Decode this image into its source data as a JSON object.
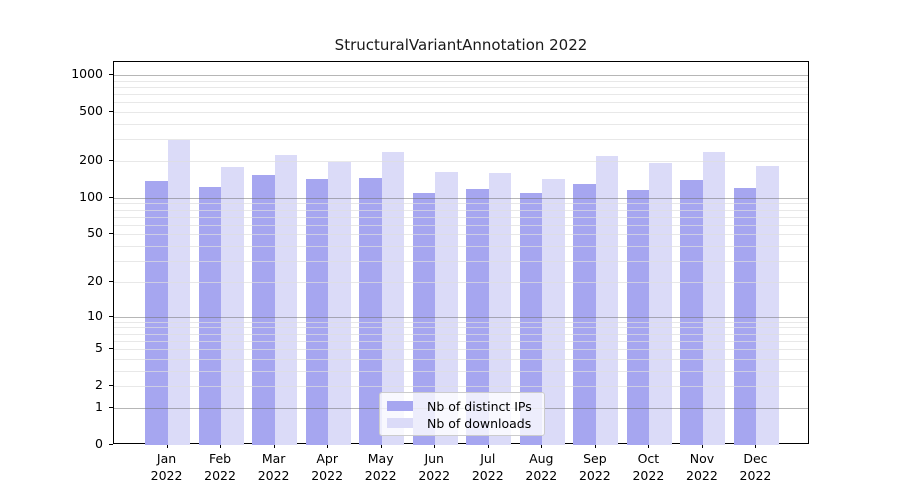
{
  "chart_data": {
    "type": "bar",
    "title": "StructuralVariantAnnotation 2022",
    "year": "2022",
    "categories": [
      "Jan",
      "Feb",
      "Mar",
      "Apr",
      "May",
      "Jun",
      "Jul",
      "Aug",
      "Sep",
      "Oct",
      "Nov",
      "Dec"
    ],
    "series": [
      {
        "name": "Nb of distinct IPs",
        "color": "#a6a6f0",
        "values": [
          137,
          122,
          155,
          142,
          145,
          109,
          119,
          110,
          130,
          115,
          139,
          121
        ]
      },
      {
        "name": "Nb of downloads",
        "color": "#dbdbf8",
        "values": [
          295,
          179,
          226,
          196,
          238,
          163,
          160,
          144,
          219,
          194,
          235,
          183
        ]
      }
    ],
    "xlabel": "",
    "ylabel": "",
    "y_ticks": [
      0,
      1,
      2,
      5,
      10,
      20,
      50,
      100,
      200,
      500,
      1000
    ],
    "y_scale": "log10(value+1)",
    "ylim": [
      0,
      1275
    ],
    "grid": "horizontal minor lines light, powers of 10 darker, drawn over bars",
    "legend_position": "inside plot, lower center"
  },
  "colors": {
    "background": "#ffffff",
    "text": "#1a1a1a",
    "spine": "#000000",
    "grid_minor": "#dedede",
    "grid_major": "#6e6e6e"
  }
}
